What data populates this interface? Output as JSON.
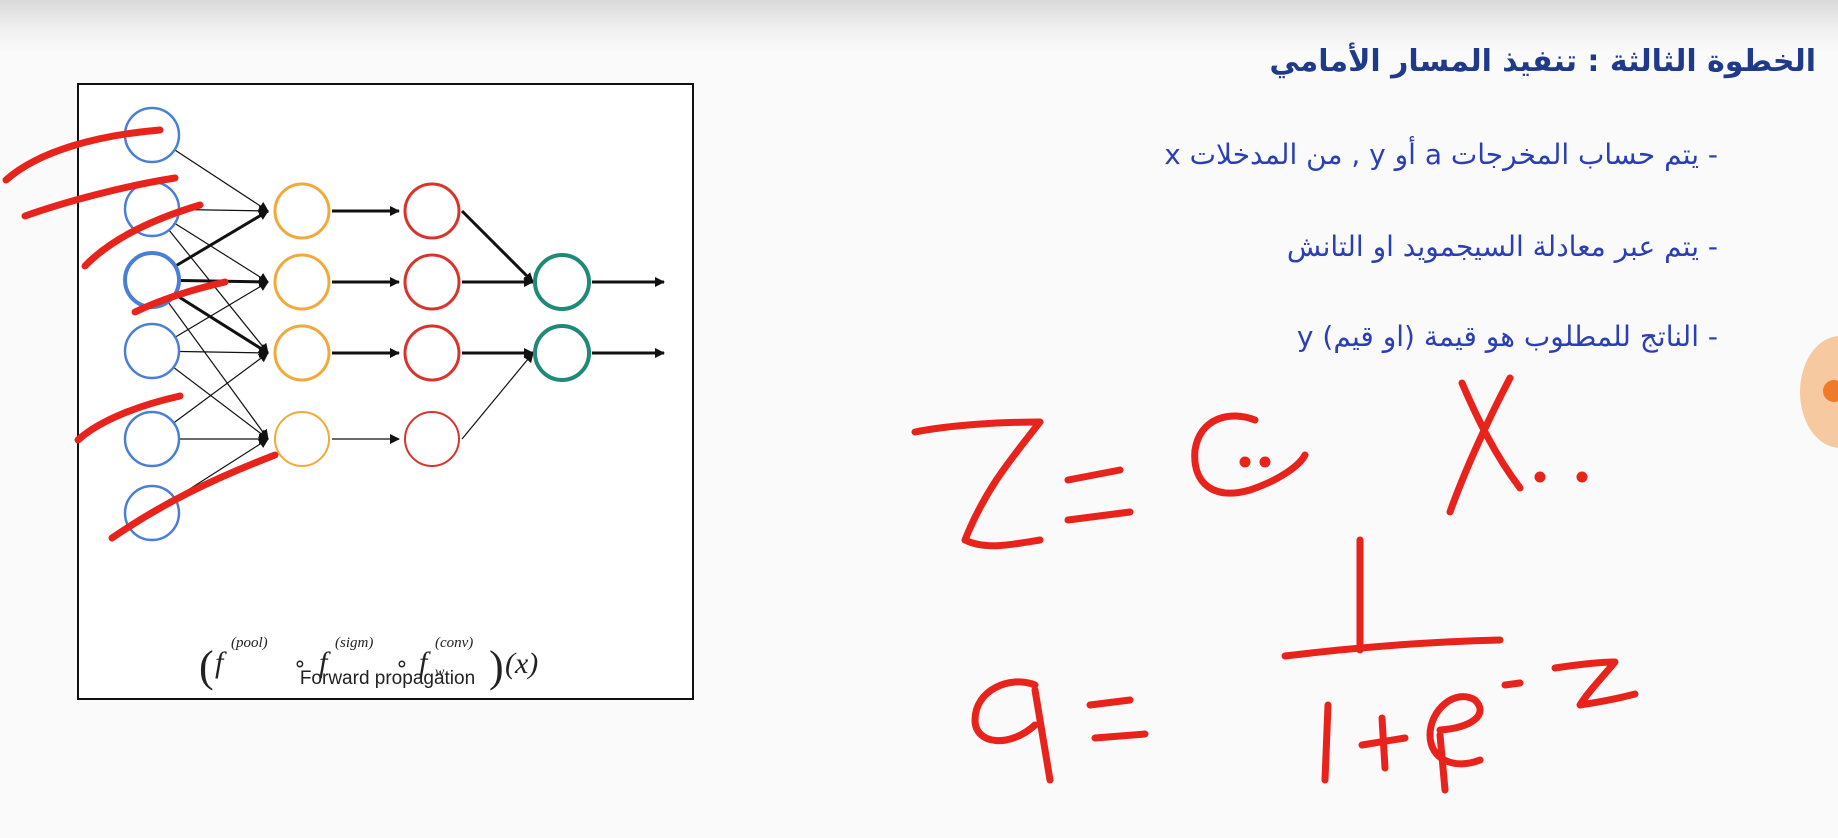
{
  "slide": {
    "title": "الخطوة الثالثة : تنفيذ المسار الأمامي",
    "bullets": [
      "- يتم حساب المخرجات a أو y , من المدخلات x",
      "- يتم عبر معادلة السيجمويد او التانش",
      "- الناتج للمطلوب هو قيمة (او قيم) y"
    ]
  },
  "figure": {
    "caption": "Forward propagation",
    "formula": {
      "open_paren": "(",
      "f1": "f",
      "f1_sup": "(pool)",
      "op1": "∘",
      "f2": "f",
      "f2_sup": "(sigm)",
      "op2": "∘",
      "f3": "f",
      "f3_sup": "(conv)",
      "f3_sub": "w",
      "close_paren": ")",
      "arg": "(x)"
    },
    "colors": {
      "input": "#4a7fd6",
      "hidden1": "#f2a93b",
      "hidden2": "#d9342b",
      "output": "#1f8a78"
    }
  },
  "annotations": {
    "ink_color": "#e8231b",
    "handwriting": "Z = C . X .. ; a = 1 / (1 + e^-Z)"
  }
}
